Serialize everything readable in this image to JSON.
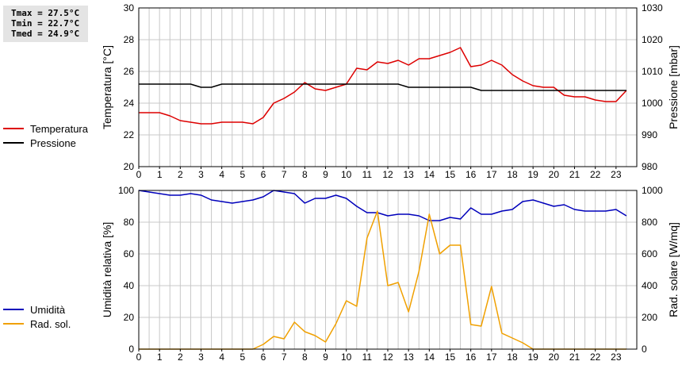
{
  "stats": [
    "Tmax = 27.5°C",
    "Tmin = 22.7°C",
    "Tmed = 24.9°C"
  ],
  "colors": {
    "temperature": "#dd0000",
    "pressure": "#000000",
    "humidity": "#0000bb",
    "radiation": "#f0a000",
    "grid": "#c8c8c8"
  },
  "chart_data": [
    {
      "type": "line",
      "grid": true,
      "legend_placement": "left",
      "xlabel": "",
      "x_ticks": [
        "0",
        "1",
        "2",
        "3",
        "4",
        "5",
        "6",
        "7",
        "8",
        "9",
        "10",
        "11",
        "12",
        "13",
        "14",
        "15",
        "16",
        "17",
        "18",
        "19",
        "20",
        "21",
        "22",
        "23"
      ],
      "xlim": [
        0,
        24
      ],
      "ylabel_left": "Temperatura [°C]",
      "ylim_left": [
        20,
        30
      ],
      "y_ticks_left": [
        "20",
        "22",
        "24",
        "26",
        "28",
        "30"
      ],
      "ylabel_right": "Pressione [mbar]",
      "ylim_right": [
        980,
        1030
      ],
      "y_ticks_right": [
        "980",
        "990",
        "1000",
        "1010",
        "1020",
        "1030"
      ],
      "series": [
        {
          "name": "Temperatura",
          "axis": "left",
          "color": "#dd0000",
          "x": [
            0,
            0.5,
            1,
            1.5,
            2,
            2.5,
            3,
            3.5,
            4,
            4.5,
            5,
            5.5,
            6,
            6.5,
            7,
            7.5,
            8,
            8.5,
            9,
            9.5,
            10,
            10.5,
            11,
            11.5,
            12,
            12.5,
            13,
            13.5,
            14,
            14.5,
            15,
            15.5,
            16,
            16.5,
            17,
            17.5,
            18,
            18.5,
            19,
            19.5,
            20,
            20.5,
            21,
            21.5,
            22,
            22.5,
            23,
            23.5
          ],
          "y": [
            23.4,
            23.4,
            23.4,
            23.2,
            22.9,
            22.8,
            22.7,
            22.7,
            22.8,
            22.8,
            22.8,
            22.7,
            23.1,
            24.0,
            24.3,
            24.7,
            25.3,
            24.9,
            24.8,
            25.0,
            25.2,
            26.2,
            26.1,
            26.6,
            26.5,
            26.7,
            26.4,
            26.8,
            26.8,
            27.0,
            27.2,
            27.5,
            26.3,
            26.4,
            26.7,
            26.4,
            25.8,
            25.4,
            25.1,
            25.0,
            25.0,
            24.5,
            24.4,
            24.4,
            24.2,
            24.1,
            24.1,
            24.8
          ]
        },
        {
          "name": "Pressione",
          "axis": "right",
          "color": "#000000",
          "x": [
            0,
            0.5,
            1,
            1.5,
            2,
            2.5,
            3,
            3.5,
            4,
            4.5,
            5,
            5.5,
            6,
            6.5,
            7,
            7.5,
            8,
            8.5,
            9,
            9.5,
            10,
            10.5,
            11,
            11.5,
            12,
            12.5,
            13,
            13.5,
            14,
            14.5,
            15,
            15.5,
            16,
            16.5,
            17,
            17.5,
            18,
            18.5,
            19,
            19.5,
            20,
            20.5,
            21,
            21.5,
            22,
            22.5,
            23,
            23.5
          ],
          "y": [
            1006,
            1006,
            1006,
            1006,
            1006,
            1006,
            1005,
            1005,
            1006,
            1006,
            1006,
            1006,
            1006,
            1006,
            1006,
            1006,
            1006,
            1006,
            1006,
            1006,
            1006,
            1006,
            1006,
            1006,
            1006,
            1006,
            1005,
            1005,
            1005,
            1005,
            1005,
            1005,
            1005,
            1004,
            1004,
            1004,
            1004,
            1004,
            1004,
            1004,
            1004,
            1004,
            1004,
            1004,
            1004,
            1004,
            1004,
            1004
          ]
        }
      ]
    },
    {
      "type": "line",
      "grid": true,
      "legend_placement": "left",
      "xlabel": "",
      "x_ticks": [
        "0",
        "1",
        "2",
        "3",
        "4",
        "5",
        "6",
        "7",
        "8",
        "9",
        "10",
        "11",
        "12",
        "13",
        "14",
        "15",
        "16",
        "17",
        "18",
        "19",
        "20",
        "21",
        "22",
        "23"
      ],
      "xlim": [
        0,
        24
      ],
      "ylabel_left": "Umidità relativa [%]",
      "ylim_left": [
        0,
        100
      ],
      "y_ticks_left": [
        "0",
        "20",
        "40",
        "60",
        "80",
        "100"
      ],
      "ylabel_right": "Rad. solare [W/mq]",
      "ylim_right": [
        0,
        1000
      ],
      "y_ticks_right": [
        "0",
        "200",
        "400",
        "600",
        "800",
        "1000"
      ],
      "series": [
        {
          "name": "Umidità",
          "axis": "left",
          "color": "#0000bb",
          "x": [
            0,
            0.5,
            1,
            1.5,
            2,
            2.5,
            3,
            3.5,
            4,
            4.5,
            5,
            5.5,
            6,
            6.5,
            7,
            7.5,
            8,
            8.5,
            9,
            9.5,
            10,
            10.5,
            11,
            11.5,
            12,
            12.5,
            13,
            13.5,
            14,
            14.5,
            15,
            15.5,
            16,
            16.5,
            17,
            17.5,
            18,
            18.5,
            19,
            19.5,
            20,
            20.5,
            21,
            21.5,
            22,
            22.5,
            23,
            23.5
          ],
          "y": [
            100,
            99,
            98,
            97,
            97,
            98,
            97,
            94,
            93,
            92,
            93,
            94,
            96,
            100,
            99,
            98,
            92,
            95,
            95,
            97,
            95,
            90,
            86,
            86,
            84,
            85,
            85,
            84,
            81,
            81,
            83,
            82,
            89,
            85,
            85,
            87,
            88,
            93,
            94,
            92,
            90,
            91,
            88,
            87,
            87,
            87,
            88,
            84
          ]
        },
        {
          "name": "Rad. sol.",
          "axis": "right",
          "color": "#f0a000",
          "x": [
            0,
            0.5,
            1,
            1.5,
            2,
            2.5,
            3,
            3.5,
            4,
            4.5,
            5,
            5.5,
            6,
            6.5,
            7,
            7.5,
            8,
            8.5,
            9,
            9.5,
            10,
            10.5,
            11,
            11.5,
            12,
            12.5,
            13,
            13.5,
            14,
            14.5,
            15,
            15.5,
            16,
            16.5,
            17,
            17.5,
            18,
            18.5,
            19,
            19.5,
            20,
            20.5,
            21,
            21.5,
            22,
            22.5,
            23,
            23.5
          ],
          "y": [
            0,
            0,
            0,
            0,
            0,
            0,
            0,
            0,
            0,
            0,
            0,
            0,
            30,
            80,
            65,
            170,
            110,
            85,
            45,
            160,
            305,
            270,
            700,
            870,
            400,
            420,
            235,
            490,
            850,
            600,
            655,
            655,
            155,
            145,
            395,
            100,
            70,
            40,
            0,
            0,
            0,
            0,
            0,
            0,
            0,
            0,
            0,
            0
          ]
        }
      ]
    }
  ]
}
